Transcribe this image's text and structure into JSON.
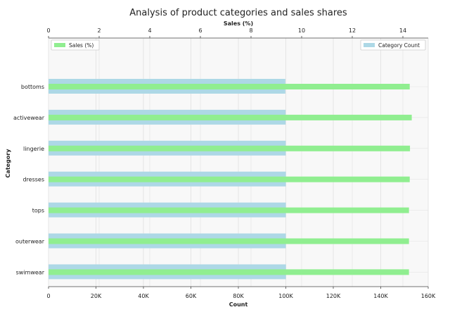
{
  "chart_data": {
    "type": "bar",
    "orientation": "horizontal",
    "title": "Analysis of product categories and sales shares",
    "ylabel": "Category",
    "categories": [
      "bottoms",
      "activewear",
      "lingerie",
      "dresses",
      "tops",
      "outerwear",
      "swimwear"
    ],
    "bottom_axis": {
      "label": "Count",
      "range": [
        0,
        160000
      ],
      "ticks": [
        0,
        20000,
        40000,
        60000,
        80000,
        100000,
        120000,
        140000,
        160000
      ],
      "tick_labels": [
        "0",
        "20K",
        "40K",
        "60K",
        "80K",
        "100K",
        "120K",
        "140K",
        "160K"
      ]
    },
    "top_axis": {
      "label": "Sales (%)",
      "range": [
        0,
        15
      ],
      "ticks": [
        0,
        2,
        4,
        6,
        8,
        10,
        12,
        14
      ],
      "tick_labels": [
        "0",
        "2",
        "4",
        "6",
        "8",
        "10",
        "12",
        "14"
      ]
    },
    "series": [
      {
        "name": "Category Count",
        "axis": "bottom",
        "color": "#add8e6",
        "values": [
          99800,
          99900,
          99950,
          100000,
          100000,
          100000,
          100050
        ],
        "legend_position": "top-right"
      },
      {
        "name": "Sales (%)",
        "axis": "top",
        "color": "#90ee90",
        "values": [
          14.27,
          14.35,
          14.28,
          14.27,
          14.24,
          14.24,
          14.24
        ],
        "legend_position": "top-left"
      }
    ],
    "grid": true,
    "background": "#f8f8f8"
  }
}
